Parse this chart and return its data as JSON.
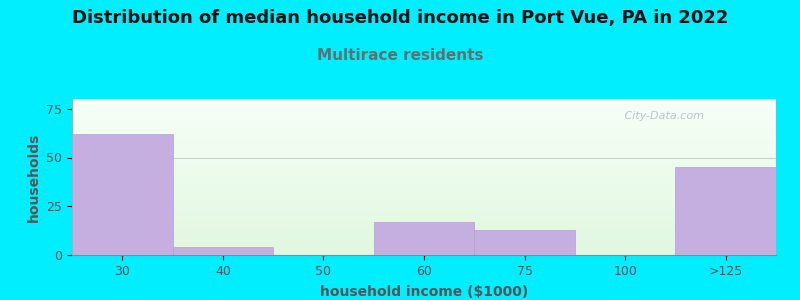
{
  "title": "Distribution of median household income in Port Vue, PA in 2022",
  "subtitle": "Multirace residents",
  "xlabel": "household income ($1000)",
  "ylabel": "households",
  "tick_positions": [
    30,
    40,
    50,
    60,
    75,
    100,
    125
  ],
  "tick_labels": [
    "30",
    "40",
    "50",
    "60",
    "75",
    "100",
    ">125"
  ],
  "values": [
    62,
    4,
    0,
    17,
    13,
    0,
    45
  ],
  "bar_color": "#c5aee0",
  "bar_edge_color": "#b39ddb",
  "background_color": "#00eeff",
  "ylim": [
    0,
    80
  ],
  "yticks": [
    0,
    25,
    50,
    75
  ],
  "title_fontsize": 13,
  "subtitle_fontsize": 11,
  "subtitle_color": "#607070",
  "axis_label_fontsize": 10,
  "tick_fontsize": 9,
  "watermark": " City-Data.com"
}
